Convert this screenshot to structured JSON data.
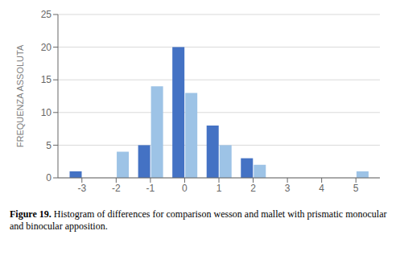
{
  "chart_data": {
    "type": "bar",
    "categories": [
      -3,
      -2,
      -1,
      0,
      1,
      2,
      3,
      4,
      5
    ],
    "series": [
      {
        "color": "#4472C4",
        "values": [
          1,
          0,
          5,
          20,
          8,
          3,
          0,
          0,
          0
        ]
      },
      {
        "color": "#9DC3E6",
        "values": [
          0,
          4,
          14,
          13,
          5,
          2,
          0,
          0,
          1
        ]
      }
    ],
    "ylabel": "FREQUENZA ASSOLUTA",
    "ylim": [
      0,
      25
    ],
    "yticks": [
      0,
      5,
      10,
      15,
      20,
      25
    ],
    "xlim": [
      -3.7,
      5.7
    ],
    "xticks": [
      -3,
      -2,
      -1,
      0,
      1,
      2,
      3,
      4,
      5
    ],
    "grid": true,
    "annotations": [
      "Figure 19.",
      "Histogram of differences for comparison wesson and mallet with prismatic monocular and binocular apposition."
    ]
  }
}
